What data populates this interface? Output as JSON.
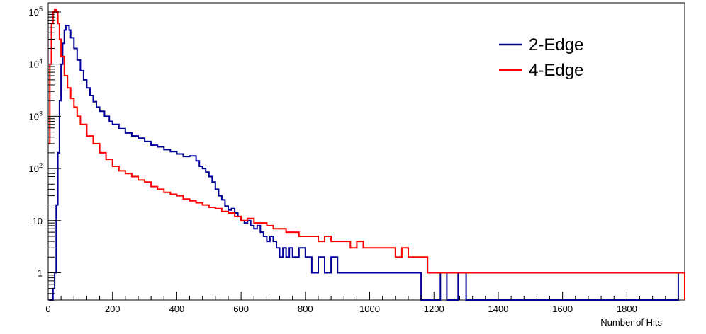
{
  "chart_data": {
    "type": "line",
    "title": "",
    "xlabel": "Number of Hits",
    "ylabel": "",
    "xlim": [
      0,
      1980
    ],
    "ylim": [
      0.3,
      150000
    ],
    "yscale": "log",
    "grid": false,
    "legend_position": "top-right",
    "x_ticks": [
      0,
      200,
      400,
      600,
      800,
      1000,
      1200,
      1400,
      1600,
      1800
    ],
    "x_tick_labels": [
      "0",
      "200",
      "400",
      "600",
      "800",
      "1000",
      "1200",
      "1400",
      "1600",
      "1800"
    ],
    "y_ticks": [
      1,
      10,
      100,
      1000,
      10000,
      100000
    ],
    "y_tick_labels": [
      {
        "text": "1",
        "base": "1",
        "exp": ""
      },
      {
        "text": "10",
        "base": "10",
        "exp": ""
      },
      {
        "text": "10^2",
        "base": "10",
        "exp": "2"
      },
      {
        "text": "10^3",
        "base": "10",
        "exp": "3"
      },
      {
        "text": "10^4",
        "base": "10",
        "exp": "4"
      },
      {
        "text": "10^5",
        "base": "10",
        "exp": "5"
      }
    ],
    "series": [
      {
        "name": "2-Edge",
        "color": "#000099",
        "x": [
          2,
          10,
          15,
          20,
          25,
          30,
          35,
          40,
          45,
          50,
          55,
          60,
          65,
          70,
          80,
          90,
          100,
          110,
          120,
          130,
          140,
          150,
          160,
          175,
          190,
          200,
          220,
          240,
          260,
          280,
          300,
          320,
          340,
          360,
          380,
          400,
          420,
          440,
          460,
          470,
          480,
          490,
          500,
          510,
          520,
          530,
          540,
          550,
          560,
          570,
          580,
          590,
          600,
          610,
          620,
          630,
          640,
          650,
          660,
          670,
          680,
          690,
          700,
          710,
          720,
          730,
          740,
          750,
          760,
          780,
          800,
          820,
          840,
          860,
          880,
          900,
          920,
          940,
          960,
          980,
          1000,
          1020,
          1040,
          1060,
          1080,
          1100,
          1120,
          1140,
          1160,
          1180,
          1200,
          1220,
          1240,
          1275,
          1300,
          1960,
          1980
        ],
        "y": [
          0.3,
          0.3,
          0.5,
          1,
          20,
          200,
          2000,
          10000,
          25000,
          45000,
          55000,
          55000,
          45000,
          32000,
          20000,
          12000,
          7500,
          5000,
          3500,
          2500,
          1900,
          1500,
          1250,
          1000,
          800,
          700,
          580,
          480,
          420,
          380,
          330,
          280,
          260,
          230,
          210,
          190,
          170,
          175,
          140,
          110,
          100,
          85,
          70,
          55,
          40,
          30,
          25,
          19,
          16,
          17,
          14,
          12,
          10,
          9,
          10,
          8,
          7,
          8,
          6,
          5,
          4,
          5,
          4,
          3,
          2,
          3,
          2,
          3,
          2,
          3,
          2,
          1,
          2,
          1,
          2,
          1,
          1,
          1,
          1,
          1,
          1,
          1,
          1,
          1,
          1,
          1,
          1,
          1,
          0.3,
          0.3,
          0.3,
          1,
          0.3,
          1,
          0.3,
          1,
          0.3
        ]
      },
      {
        "name": "4-Edge",
        "color": "#ff0000",
        "x": [
          0,
          5,
          10,
          15,
          20,
          25,
          30,
          35,
          40,
          50,
          60,
          70,
          80,
          90,
          100,
          120,
          140,
          160,
          180,
          200,
          220,
          240,
          260,
          280,
          300,
          320,
          340,
          360,
          380,
          400,
          420,
          440,
          460,
          480,
          500,
          520,
          540,
          560,
          580,
          600,
          620,
          640,
          660,
          680,
          700,
          720,
          740,
          760,
          780,
          800,
          820,
          840,
          860,
          880,
          900,
          920,
          940,
          960,
          980,
          1000,
          1020,
          1040,
          1060,
          1080,
          1100,
          1120,
          1140,
          1160,
          1180,
          1200,
          1980
        ],
        "y": [
          300,
          10000,
          60000,
          100000,
          110000,
          100000,
          60000,
          30000,
          14000,
          6000,
          3500,
          2200,
          1500,
          1000,
          700,
          420,
          300,
          200,
          150,
          110,
          90,
          80,
          70,
          60,
          55,
          45,
          40,
          35,
          32,
          30,
          26,
          24,
          22,
          20,
          18,
          17,
          15,
          14,
          12,
          10,
          11,
          9,
          9,
          8,
          7,
          7,
          6,
          6,
          5,
          5,
          5,
          4,
          5,
          4,
          4,
          4,
          3,
          4,
          3,
          3,
          3,
          3,
          3,
          2,
          3,
          2,
          2,
          2,
          1,
          1,
          0.3
        ]
      }
    ]
  }
}
